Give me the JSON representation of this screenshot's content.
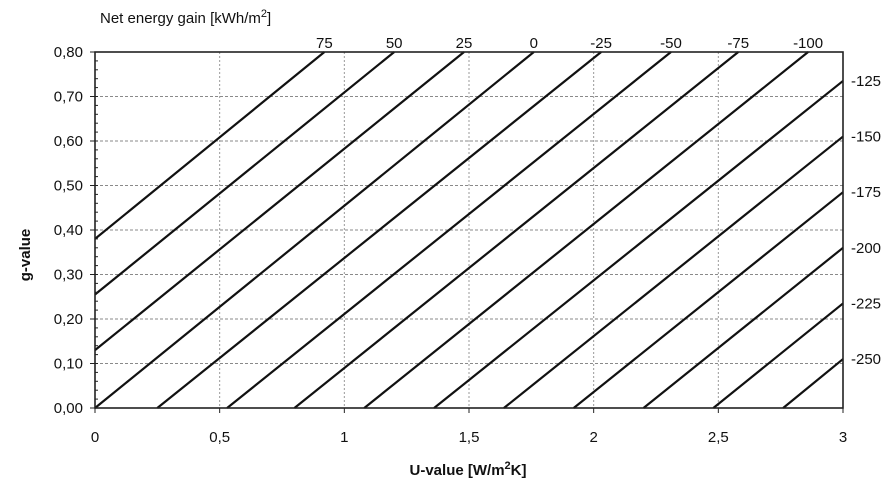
{
  "chart_data": {
    "type": "line",
    "title": "Net energy gain [kWh/m²]",
    "top_title_parts": {
      "main": "Net energy gain [kWh/m",
      "sup": "2",
      "close": "]"
    },
    "xlabel": "U-value [W/m²K]",
    "xlabel_parts": {
      "main": "U-value [W/m",
      "sup": "2",
      "close": "K]"
    },
    "ylabel": "g-value",
    "xlim": [
      0,
      3
    ],
    "ylim": [
      0,
      0.8
    ],
    "x_ticks": [
      0,
      0.5,
      1,
      1.5,
      2,
      2.5,
      3
    ],
    "x_tick_labels": [
      "0",
      "0,5",
      "1",
      "1,5",
      "2",
      "2,5",
      "3"
    ],
    "y_ticks": [
      0,
      0.1,
      0.2,
      0.3,
      0.4,
      0.5,
      0.6,
      0.7,
      0.8
    ],
    "y_tick_labels": [
      "0,00",
      "0,10",
      "0,20",
      "0,30",
      "0,40",
      "0,50",
      "0,60",
      "0,70",
      "0,80"
    ],
    "grid": true,
    "series": [
      {
        "label": "75",
        "label_edge": "top",
        "x": [
          0,
          0.92
        ],
        "y": [
          0.38,
          0.8
        ]
      },
      {
        "label": "50",
        "label_edge": "top",
        "x": [
          0,
          1.2
        ],
        "y": [
          0.255,
          0.8
        ]
      },
      {
        "label": "25",
        "label_edge": "top",
        "x": [
          0,
          1.48
        ],
        "y": [
          0.13,
          0.8
        ]
      },
      {
        "label": "0",
        "label_edge": "top",
        "x": [
          0,
          1.76
        ],
        "y": [
          0.0,
          0.8
        ]
      },
      {
        "label": "-25",
        "label_edge": "top",
        "x": [
          0.25,
          2.03
        ],
        "y": [
          0.0,
          0.8
        ]
      },
      {
        "label": "-50",
        "label_edge": "top",
        "x": [
          0.53,
          2.31
        ],
        "y": [
          0.0,
          0.8
        ]
      },
      {
        "label": "-75",
        "label_edge": "top",
        "x": [
          0.8,
          2.58
        ],
        "y": [
          0.0,
          0.8
        ]
      },
      {
        "label": "-100",
        "label_edge": "top",
        "x": [
          1.08,
          2.86
        ],
        "y": [
          0.0,
          0.8
        ]
      },
      {
        "label": "-125",
        "label_edge": "right",
        "x": [
          1.36,
          3.0
        ],
        "y": [
          0.0,
          0.735
        ]
      },
      {
        "label": "-150",
        "label_edge": "right",
        "x": [
          1.64,
          3.0
        ],
        "y": [
          0.0,
          0.61
        ]
      },
      {
        "label": "-175",
        "label_edge": "right",
        "x": [
          1.92,
          3.0
        ],
        "y": [
          0.0,
          0.485
        ]
      },
      {
        "label": "-200",
        "label_edge": "right",
        "x": [
          2.2,
          3.0
        ],
        "y": [
          0.0,
          0.36
        ]
      },
      {
        "label": "-225",
        "label_edge": "right",
        "x": [
          2.48,
          3.0
        ],
        "y": [
          0.0,
          0.235
        ]
      },
      {
        "label": "-250",
        "label_edge": "right",
        "x": [
          2.76,
          3.0
        ],
        "y": [
          0.0,
          0.11
        ]
      }
    ]
  }
}
